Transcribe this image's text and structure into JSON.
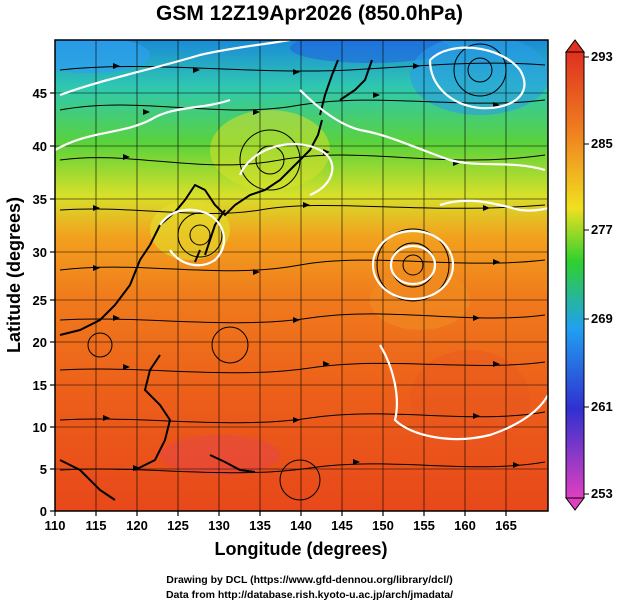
{
  "title": "GSM 12Z19Apr2026 (850.0hPa)",
  "map": {
    "xlabel": "Longitude (degrees)",
    "ylabel": "Latitude (degrees)",
    "xlim": [
      110,
      170
    ],
    "ylim": [
      0,
      50
    ],
    "xticks": [
      "110",
      "115",
      "120",
      "125",
      "130",
      "135",
      "140",
      "145",
      "150",
      "155",
      "160",
      "165"
    ],
    "yticks": [
      "0",
      "5",
      "10",
      "15",
      "20",
      "25",
      "30",
      "35",
      "40",
      "45"
    ],
    "field": "temperature",
    "grid": true
  },
  "colorbar": {
    "labels": [
      "293",
      "285",
      "277",
      "269",
      "261",
      "253"
    ],
    "range": [
      253,
      293
    ],
    "colors": [
      "#e040c0",
      "#3030d0",
      "#20a0f0",
      "#30d030",
      "#f0e020",
      "#f08020",
      "#e03020"
    ]
  },
  "footer": {
    "line1": "Drawing by DCL (https://www.gfd-dennou.org/library/dcl/)",
    "line2": "Data from http://database.rish.kyoto-u.ac.jp/arch/jmadata/"
  }
}
